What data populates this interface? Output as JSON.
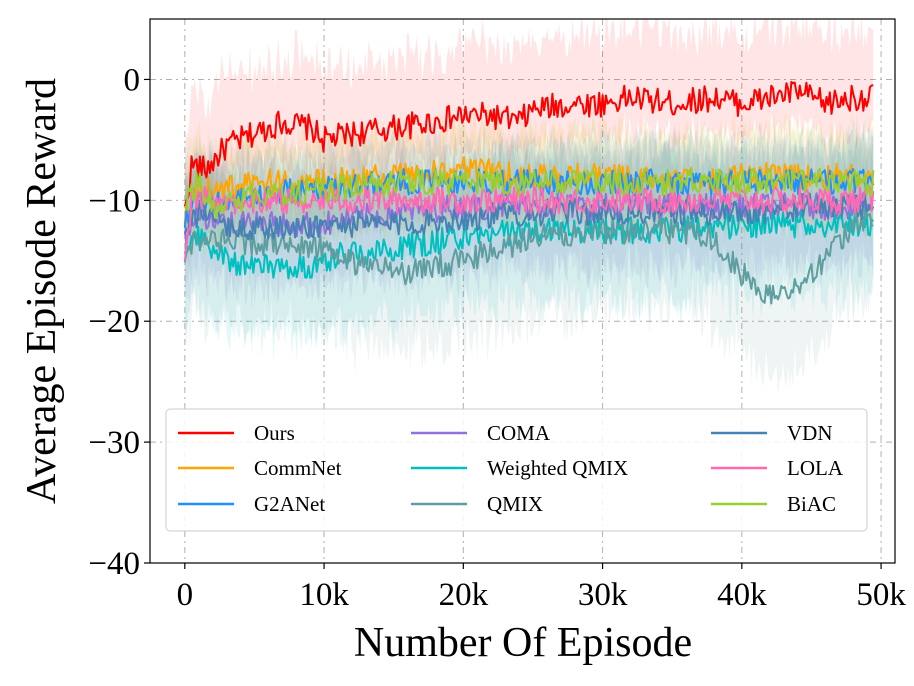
{
  "chart_data": {
    "type": "line",
    "title": "",
    "xlabel": "Number Of Episode",
    "ylabel": "Average Episode Reward",
    "xlim": [
      -2500,
      51000
    ],
    "ylim": [
      -40,
      5
    ],
    "x_ticks": [
      0,
      10000,
      20000,
      30000,
      40000,
      50000
    ],
    "x_tick_labels": [
      "0",
      "10k",
      "20k",
      "30k",
      "40k",
      "50k"
    ],
    "y_ticks": [
      0,
      -10,
      -20,
      -30,
      -40
    ],
    "y_tick_labels": [
      "0",
      "−10",
      "−20",
      "−30",
      "−40"
    ],
    "grid": true,
    "legend_position": "lower-center",
    "legend_columns": 3,
    "series": [
      {
        "name": "Ours",
        "color": "#ff0000",
        "points": [
          [
            0,
            -11
          ],
          [
            500,
            -7
          ],
          [
            1500,
            -7.5
          ],
          [
            3000,
            -5.5
          ],
          [
            5000,
            -4.5
          ],
          [
            7000,
            -3.5
          ],
          [
            9000,
            -4
          ],
          [
            10000,
            -5
          ],
          [
            12000,
            -4.5
          ],
          [
            15000,
            -4
          ],
          [
            18000,
            -3.5
          ],
          [
            20000,
            -3
          ],
          [
            22000,
            -3
          ],
          [
            24000,
            -3.5
          ],
          [
            25000,
            -2.5
          ],
          [
            28000,
            -2
          ],
          [
            30000,
            -2
          ],
          [
            32000,
            -1.5
          ],
          [
            35000,
            -2
          ],
          [
            38000,
            -1.5
          ],
          [
            40000,
            -2
          ],
          [
            42000,
            -1.5
          ],
          [
            44000,
            -1
          ],
          [
            46000,
            -2
          ],
          [
            48000,
            -1.5
          ],
          [
            49500,
            -1.5
          ]
        ],
        "band": [
          6,
          3
        ]
      },
      {
        "name": "CommNet",
        "color": "#ffa500",
        "points": [
          [
            0,
            -11
          ],
          [
            1000,
            -9
          ],
          [
            3000,
            -9
          ],
          [
            6000,
            -8.5
          ],
          [
            10000,
            -8.5
          ],
          [
            15000,
            -8
          ],
          [
            20000,
            -7.5
          ],
          [
            25000,
            -8
          ],
          [
            30000,
            -8
          ],
          [
            35000,
            -8.5
          ],
          [
            40000,
            -8
          ],
          [
            45000,
            -8
          ],
          [
            49500,
            -8
          ]
        ],
        "band": [
          4,
          4
        ]
      },
      {
        "name": "G2ANet",
        "color": "#1e90ff",
        "points": [
          [
            0,
            -12
          ],
          [
            1000,
            -10
          ],
          [
            3000,
            -10
          ],
          [
            6000,
            -9.5
          ],
          [
            10000,
            -9
          ],
          [
            15000,
            -8.5
          ],
          [
            20000,
            -8.5
          ],
          [
            25000,
            -8.5
          ],
          [
            30000,
            -8.5
          ],
          [
            35000,
            -8.5
          ],
          [
            40000,
            -8.5
          ],
          [
            45000,
            -8.5
          ],
          [
            49500,
            -8.5
          ]
        ],
        "band": [
          3.5,
          3.5
        ]
      },
      {
        "name": "COMA",
        "color": "#9370db",
        "points": [
          [
            0,
            -13
          ],
          [
            1000,
            -11
          ],
          [
            3000,
            -12
          ],
          [
            6000,
            -12
          ],
          [
            10000,
            -12
          ],
          [
            15000,
            -11
          ],
          [
            20000,
            -10.5
          ],
          [
            25000,
            -10.5
          ],
          [
            30000,
            -10.5
          ],
          [
            35000,
            -10.5
          ],
          [
            40000,
            -10.5
          ],
          [
            45000,
            -10.5
          ],
          [
            49500,
            -10.5
          ]
        ],
        "band": [
          5,
          5
        ]
      },
      {
        "name": "Weighted QMIX",
        "color": "#00bfbf",
        "points": [
          [
            0,
            -14
          ],
          [
            1000,
            -13
          ],
          [
            3000,
            -15
          ],
          [
            6000,
            -15.5
          ],
          [
            9000,
            -15.5
          ],
          [
            11000,
            -14.5
          ],
          [
            15000,
            -14
          ],
          [
            20000,
            -13
          ],
          [
            25000,
            -12.5
          ],
          [
            30000,
            -12.5
          ],
          [
            35000,
            -12.5
          ],
          [
            40000,
            -12
          ],
          [
            45000,
            -12
          ],
          [
            49500,
            -12
          ]
        ],
        "band": [
          6,
          6
        ]
      },
      {
        "name": "QMIX",
        "color": "#5f9ea0",
        "points": [
          [
            0,
            -14
          ],
          [
            1000,
            -13
          ],
          [
            3000,
            -13.5
          ],
          [
            6000,
            -13.5
          ],
          [
            10000,
            -14
          ],
          [
            13000,
            -15.5
          ],
          [
            16000,
            -16
          ],
          [
            20000,
            -15
          ],
          [
            25000,
            -13
          ],
          [
            30000,
            -12.5
          ],
          [
            35000,
            -12.5
          ],
          [
            38000,
            -13
          ],
          [
            40000,
            -16
          ],
          [
            42000,
            -18
          ],
          [
            44000,
            -17
          ],
          [
            46000,
            -15
          ],
          [
            48000,
            -12
          ],
          [
            49500,
            -11
          ]
        ],
        "band": [
          7,
          7
        ]
      },
      {
        "name": "VDN",
        "color": "#4682b4",
        "points": [
          [
            0,
            -13
          ],
          [
            1000,
            -11
          ],
          [
            3000,
            -12
          ],
          [
            6000,
            -12.5
          ],
          [
            10000,
            -12
          ],
          [
            15000,
            -12
          ],
          [
            20000,
            -11.5
          ],
          [
            25000,
            -11
          ],
          [
            30000,
            -11
          ],
          [
            35000,
            -11
          ],
          [
            40000,
            -11
          ],
          [
            45000,
            -10.5
          ],
          [
            49500,
            -10.5
          ]
        ],
        "band": [
          5,
          5
        ]
      },
      {
        "name": "LOLA",
        "color": "#ff69b4",
        "points": [
          [
            0,
            -16
          ],
          [
            500,
            -10
          ],
          [
            3000,
            -10
          ],
          [
            6000,
            -10
          ],
          [
            10000,
            -10
          ],
          [
            15000,
            -10
          ],
          [
            20000,
            -10
          ],
          [
            25000,
            -10
          ],
          [
            30000,
            -10
          ],
          [
            35000,
            -10
          ],
          [
            40000,
            -10
          ],
          [
            45000,
            -10
          ],
          [
            49500,
            -10
          ]
        ],
        "band": [
          1,
          1
        ]
      },
      {
        "name": "BiAC",
        "color": "#9acd32",
        "points": [
          [
            0,
            -10
          ],
          [
            1000,
            -8.5
          ],
          [
            2500,
            -11
          ],
          [
            3500,
            -10
          ],
          [
            6000,
            -9.5
          ],
          [
            10000,
            -9
          ],
          [
            15000,
            -8.5
          ],
          [
            20000,
            -8.5
          ],
          [
            25000,
            -8.5
          ],
          [
            30000,
            -8.5
          ],
          [
            35000,
            -8.5
          ],
          [
            40000,
            -8.5
          ],
          [
            45000,
            -8.5
          ],
          [
            49500,
            -8.5
          ]
        ],
        "band": [
          4,
          4
        ]
      }
    ]
  }
}
